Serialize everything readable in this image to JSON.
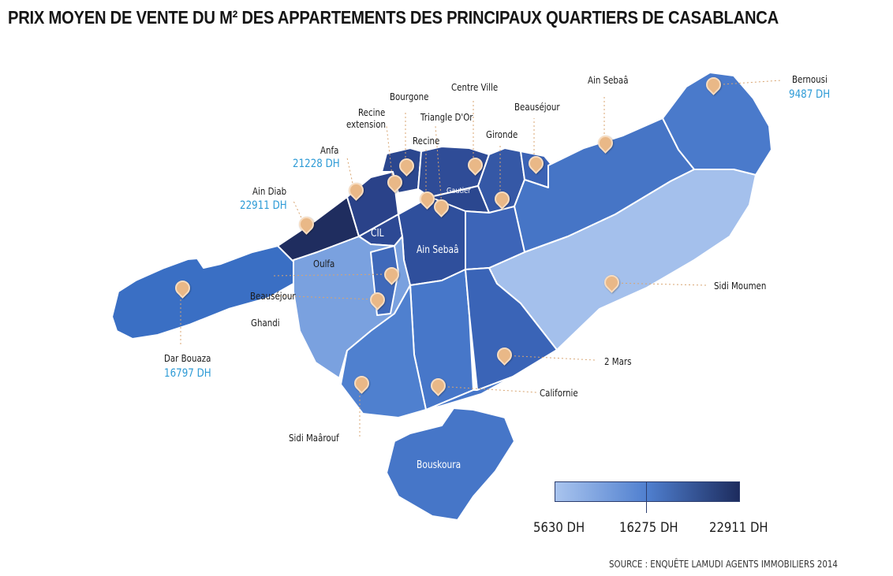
{
  "title": "PRIX MOYEN DE VENTE DU M² DES APPARTEMENTS DES PRINCIPAUX QUARTIERS DE CASABLANCA",
  "legend": {
    "colors": [
      "#a9c4ee",
      "#4f7fcf",
      "#1d2c5e"
    ],
    "min": "5630 DH",
    "mid": "16275 DH",
    "max": "22911 DH"
  },
  "map_labels": {
    "ain_diab": "Ain Diab",
    "ain_diab_price": "22911 DH",
    "anfa": "Anfa",
    "anfa_price": "21228 DH",
    "recine_extension_1": "Recine",
    "recine_extension_2": "extension",
    "bourgone": "Bourgone",
    "centre_ville": "Centre Ville",
    "triangle_dor": "Triangle D'Or",
    "recine": "Recine",
    "gironde": "Gironde",
    "beausejour_top": "Beauséjour",
    "ain_sebaa_top": "Ain Sebaâ",
    "bernousi": "Bernousi",
    "bernousi_price": "9487 DH",
    "sidi_moumen": "Sidi Moumen",
    "deux_mars": "2 Mars",
    "californie": "Californie",
    "sidi_maarouf": "Sidi Maârouf",
    "dar_bouaza": "Dar Bouaza",
    "dar_bouaza_price": "16797 DH",
    "beausejour_left": "Beauséjour",
    "ghandi": "Ghandi",
    "oulfa": "Oulfa",
    "cil": "CIL",
    "ain_sebaa_center": "Ain Sebaâ",
    "gautier": "Gautier",
    "bouskoura": "Bouskoura"
  },
  "source": "SOURCE : ENQUÊTE LAMUDI AGENTS IMMOBILIERS 2014"
}
